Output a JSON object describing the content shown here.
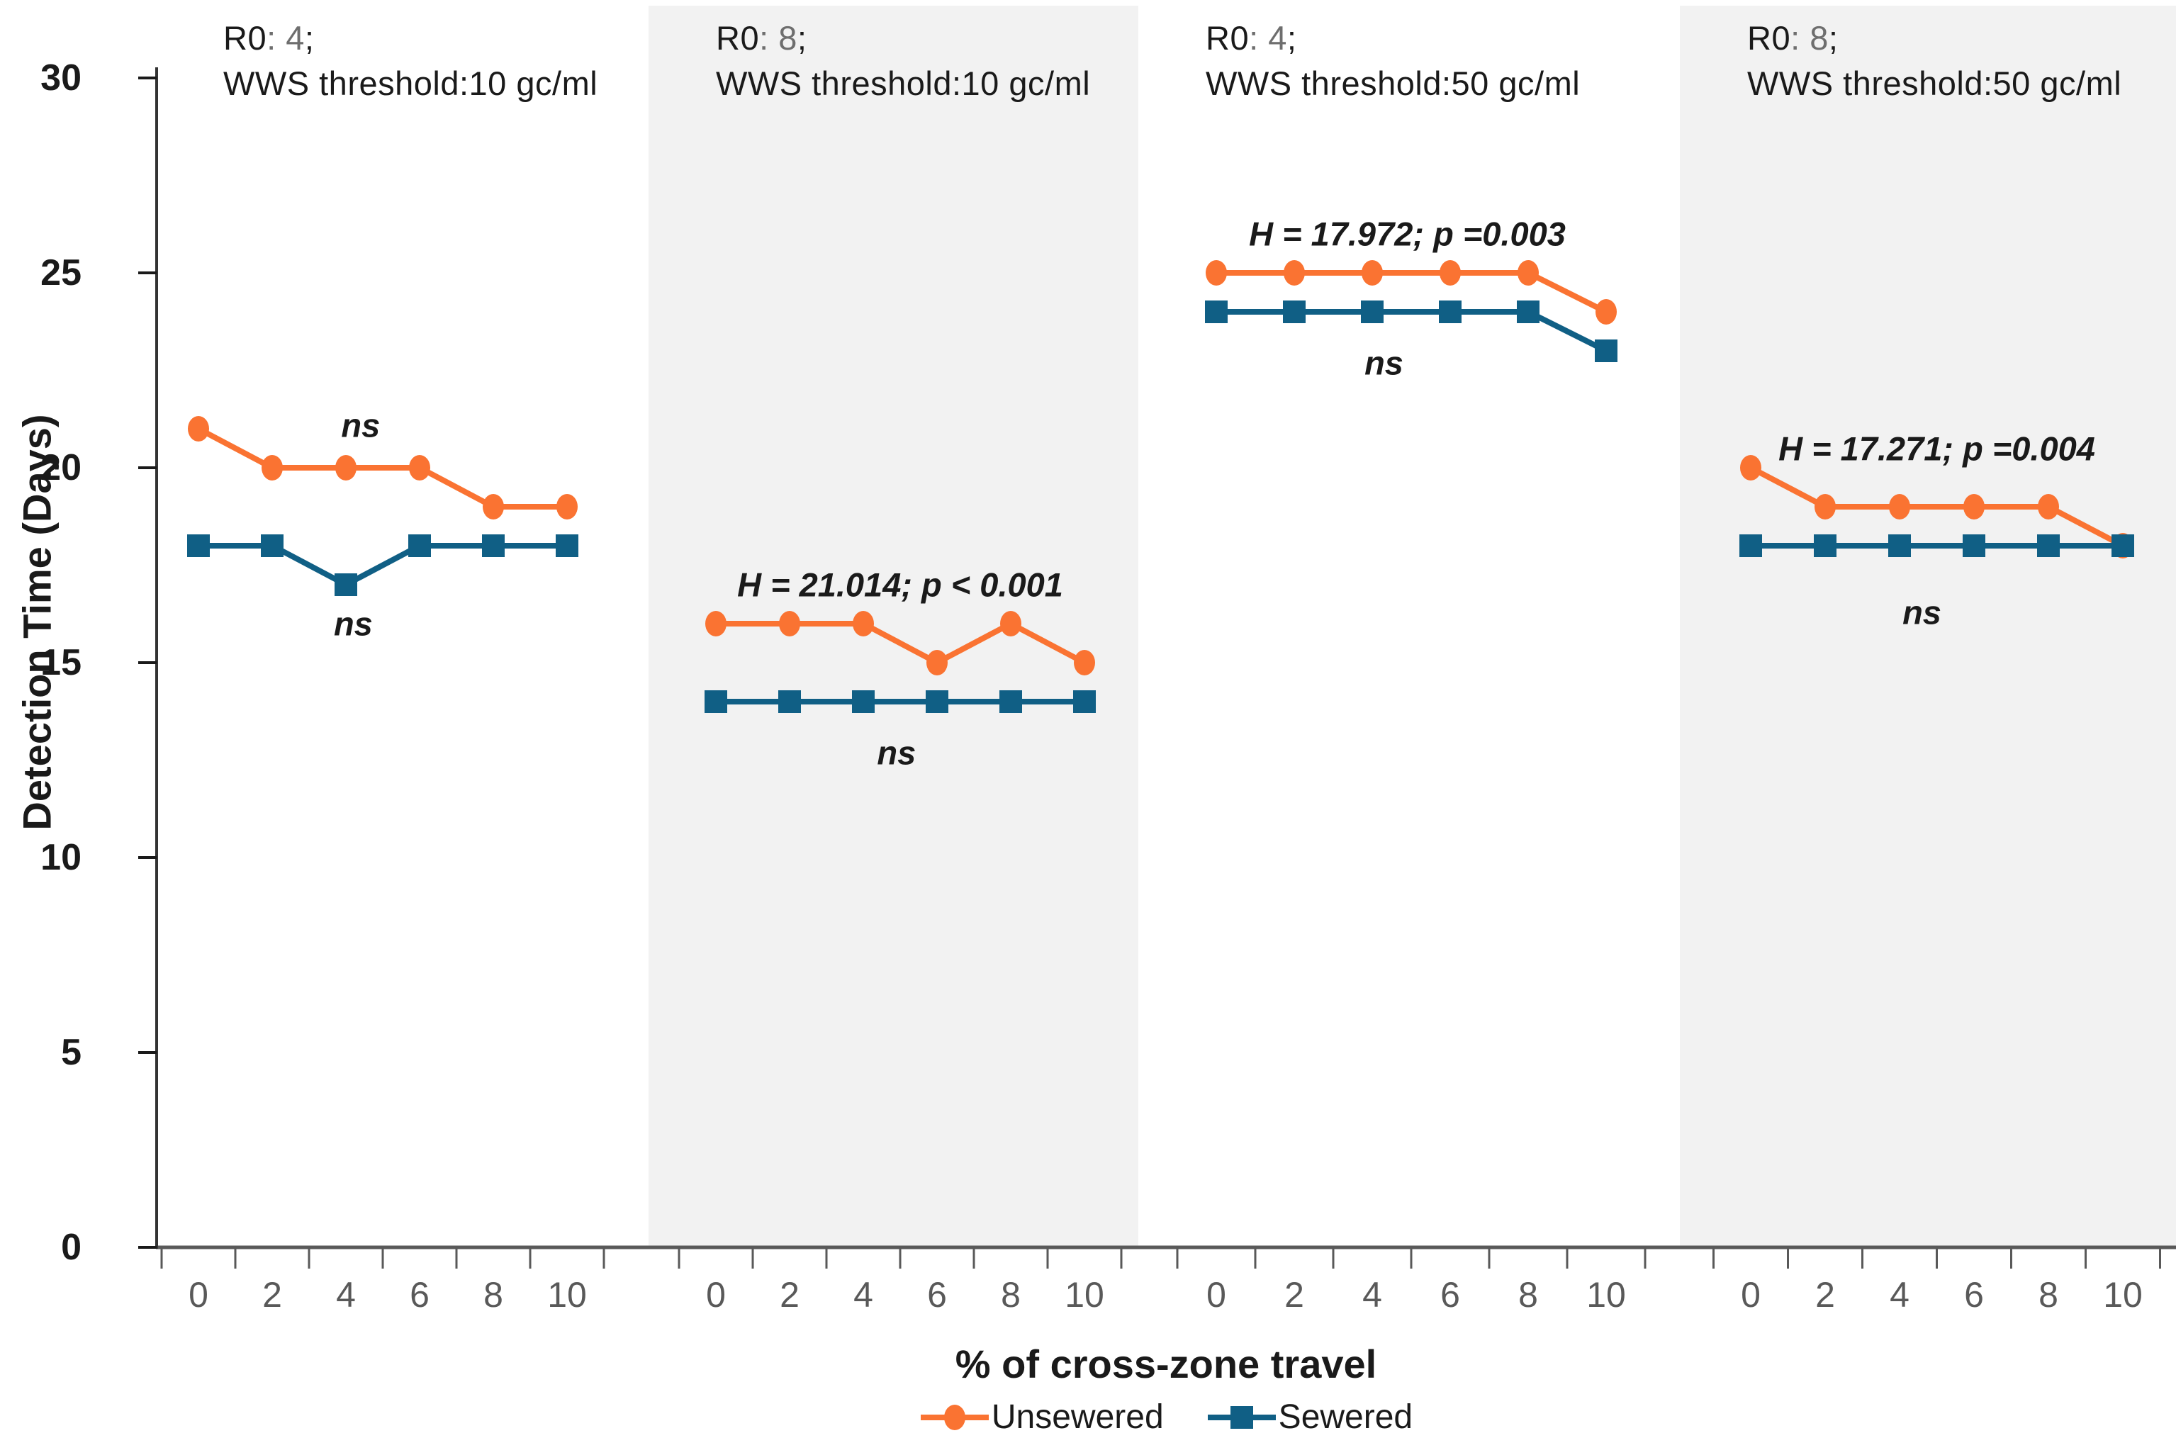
{
  "figure": {
    "y_axis_label": "Detection Time (Days)",
    "x_axis_label": "% of cross-zone travel",
    "legend": {
      "unsewered_label": "Unsewered",
      "sewered_label": "Sewered"
    },
    "colors": {
      "unsewered": "#FA7332",
      "sewered": "#105F85",
      "shaded_band": "#F2F2F2",
      "axis_gray": "#595959",
      "tick_text_gray": "#595959",
      "text_black": "#1A1A1A",
      "r0_value_gray": "#6E6E6E"
    }
  },
  "chart_data": {
    "type": "line",
    "x": [
      0,
      2,
      4,
      6,
      8,
      10
    ],
    "x_tick_labels": [
      "0",
      "2",
      "4",
      "6",
      "8",
      "10"
    ],
    "y_ticks": [
      0,
      5,
      10,
      15,
      20,
      25,
      30
    ],
    "ylim": [
      0,
      30
    ],
    "xlabel": "% of cross-zone travel",
    "ylabel": "Detection Time (Days)",
    "legend_position": "bottom-center",
    "grid": false,
    "series_names": [
      "Unsewered",
      "Sewered"
    ],
    "panels": [
      {
        "title_r0_label": "R0",
        "title_r0_value": ": 4",
        "title_r0_suffix": ";",
        "title_line2": "WWS threshold:10 gc/ml",
        "shaded": false,
        "unsewered": [
          21,
          20,
          20,
          20,
          19,
          19
        ],
        "sewered": [
          18,
          18,
          17,
          18,
          18,
          18
        ],
        "stat_label": null,
        "ns_labels": [
          {
            "text": "ns",
            "x": 4.4,
            "y": 21.1
          },
          {
            "text": "ns",
            "x": 4.2,
            "y": 16.0
          }
        ]
      },
      {
        "title_r0_label": "R0",
        "title_r0_value": ": 8",
        "title_r0_suffix": ";",
        "title_line2": "WWS threshold:10 gc/ml",
        "shaded": true,
        "unsewered": [
          16,
          16,
          16,
          15,
          16,
          15
        ],
        "sewered": [
          14,
          14,
          14,
          14,
          14,
          14
        ],
        "stat_label": {
          "text": "H = 21.014; p < 0.001",
          "x": 5.0,
          "y": 17.0
        },
        "ns_labels": [
          {
            "text": "ns",
            "x": 4.9,
            "y": 12.7
          }
        ]
      },
      {
        "title_r0_label": "R0",
        "title_r0_value": ": 4",
        "title_r0_suffix": ";",
        "title_line2": "WWS threshold:50 gc/ml",
        "shaded": false,
        "unsewered": [
          25,
          25,
          25,
          25,
          25,
          24
        ],
        "sewered": [
          24,
          24,
          24,
          24,
          24,
          23
        ],
        "stat_label": {
          "text": "H = 17.972; p =0.003",
          "x": 4.9,
          "y": 26.0
        },
        "ns_labels": [
          {
            "text": "ns",
            "x": 4.3,
            "y": 22.7
          }
        ]
      },
      {
        "title_r0_label": "R0",
        "title_r0_value": ": 8",
        "title_r0_suffix": ";",
        "title_line2": "WWS threshold:50 gc/ml",
        "shaded": true,
        "unsewered": [
          20,
          19,
          19,
          19,
          19,
          18
        ],
        "sewered": [
          18,
          18,
          18,
          18,
          18,
          18
        ],
        "stat_label": {
          "text": "H = 17.271; p =0.004",
          "x": 5.0,
          "y": 20.5
        },
        "ns_labels": [
          {
            "text": "ns",
            "x": 4.6,
            "y": 16.3
          }
        ]
      }
    ]
  }
}
